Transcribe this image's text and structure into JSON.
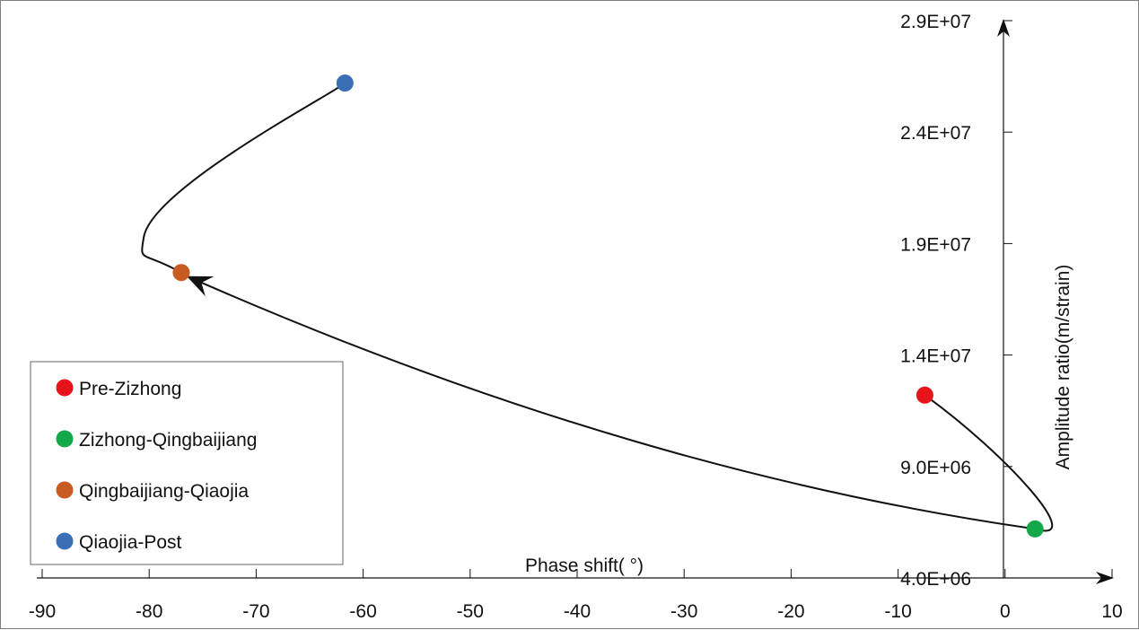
{
  "chart_data": {
    "type": "scatter",
    "title": "",
    "xlabel": "Phase shift(  °)",
    "ylabel": "Amplitude ratio(m/strain)",
    "xlim": [
      -90,
      10
    ],
    "ylim": [
      4000000,
      29000000
    ],
    "x_ticks": [
      "-90",
      "-80",
      "-70",
      "-60",
      "-50",
      "-40",
      "-30",
      "-20",
      "-10",
      "0",
      "10"
    ],
    "x_tick_values": [
      -90,
      -80,
      -70,
      -60,
      -50,
      -40,
      -30,
      -20,
      -10,
      0,
      10
    ],
    "y_ticks": [
      "4.0E+06",
      "9.0E+06",
      "1.4E+07",
      "1.9E+07",
      "2.4E+07",
      "2.9E+07"
    ],
    "y_tick_values": [
      4000000,
      9000000,
      14000000,
      19000000,
      24000000,
      29000000
    ],
    "grid": false,
    "legend_position": "bottom-left",
    "series": [
      {
        "name": "Pre-Zizhong",
        "color": "#e8141c",
        "x": -7.5,
        "y": 12200000
      },
      {
        "name": "Zizhong-Qingbaijiang",
        "color": "#13a84a",
        "x": 2.8,
        "y": 6200000
      },
      {
        "name": "Qingbaijiang-Qiaojia",
        "color": "#c75b21",
        "x": -77.0,
        "y": 17700000
      },
      {
        "name": "Qiaojia-Post",
        "color": "#3a6eb5",
        "x": -61.7,
        "y": 26200000
      }
    ],
    "path_direction": [
      "Pre-Zizhong",
      "Zizhong-Qingbaijiang",
      "Qingbaijiang-Qiaojia",
      "Qiaojia-Post"
    ]
  }
}
